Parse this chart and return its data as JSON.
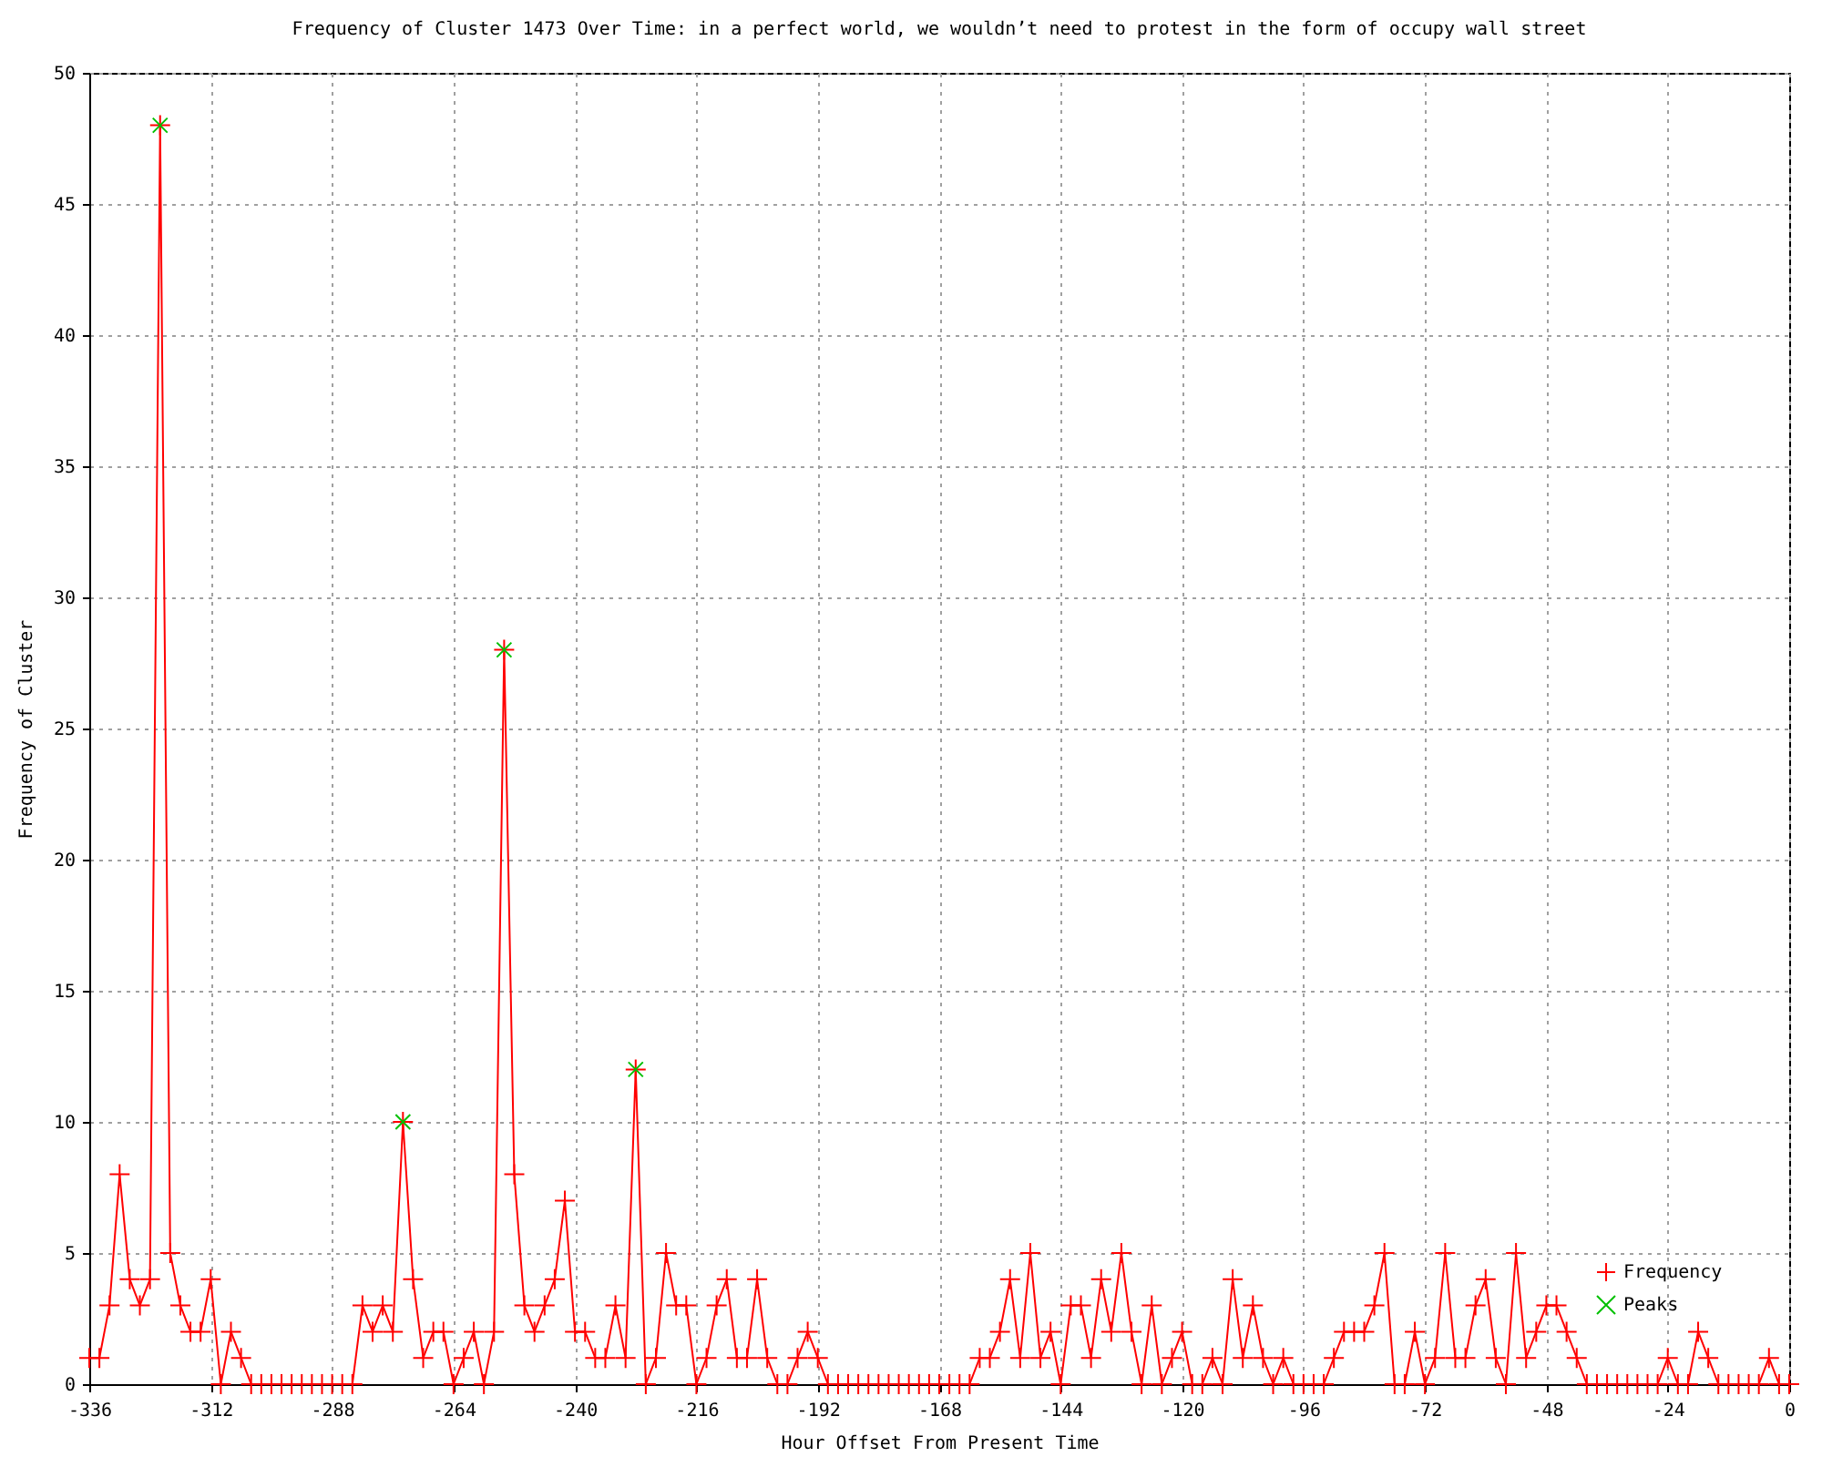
{
  "chart_data": {
    "type": "line",
    "title": "Frequency of Cluster 1473 Over Time: in a perfect world, we wouldn’t need to protest in the form of occupy wall street",
    "xlabel": "Hour Offset From Present Time",
    "ylabel": "Frequency of Cluster",
    "x": [
      -336,
      -334,
      -332,
      -330,
      -328,
      -326,
      -324,
      -322,
      -320,
      -318,
      -316,
      -314,
      -312,
      -310,
      -308,
      -306,
      -304,
      -302,
      -300,
      -298,
      -296,
      -294,
      -292,
      -290,
      -288,
      -286,
      -284,
      -282,
      -280,
      -278,
      -276,
      -274,
      -272,
      -270,
      -268,
      -266,
      -264,
      -262,
      -260,
      -258,
      -256,
      -254,
      -252,
      -250,
      -248,
      -246,
      -244,
      -242,
      -240,
      -238,
      -236,
      -234,
      -232,
      -230,
      -228,
      -226,
      -224,
      -222,
      -220,
      -218,
      -216,
      -214,
      -212,
      -210,
      -208,
      -206,
      -204,
      -202,
      -200,
      -198,
      -196,
      -194,
      -192,
      -190,
      -188,
      -186,
      -184,
      -182,
      -180,
      -178,
      -176,
      -174,
      -172,
      -170,
      -168,
      -166,
      -164,
      -162,
      -160,
      -158,
      -156,
      -154,
      -152,
      -150,
      -148,
      -146,
      -144,
      -142,
      -140,
      -138,
      -136,
      -134,
      -132,
      -130,
      -128,
      -126,
      -124,
      -122,
      -120,
      -118,
      -116,
      -114,
      -112,
      -110,
      -108,
      -106,
      -104,
      -102,
      -100,
      -98,
      -96,
      -94,
      -92,
      -90,
      -88,
      -86,
      -84,
      -82,
      -80,
      -78,
      -76,
      -74,
      -72,
      -70,
      -68,
      -66,
      -64,
      -62,
      -60,
      -58,
      -56,
      -54,
      -52,
      -50,
      -48,
      -46,
      -44,
      -42,
      -40,
      -38,
      -36,
      -34,
      -32,
      -30,
      -28,
      -26,
      -24,
      -22,
      -20,
      -18,
      -16,
      -14,
      -12,
      -10,
      -8,
      -6,
      -4,
      -2,
      0
    ],
    "xlim": [
      -336,
      0
    ],
    "xticks": [
      -336,
      -312,
      -288,
      -264,
      -240,
      -216,
      -192,
      -168,
      -144,
      -120,
      -96,
      -72,
      -48,
      -24,
      0
    ],
    "ylim": [
      0,
      50
    ],
    "yticks": [
      0,
      5,
      10,
      15,
      20,
      25,
      30,
      35,
      40,
      45,
      50
    ],
    "grid": true,
    "legend": "bottom right",
    "series": [
      {
        "name": "Frequency",
        "color": "#ff0000",
        "marker": "cross",
        "line_style": "solid",
        "values": [
          1,
          1,
          3,
          8,
          4,
          3,
          4,
          48,
          5,
          3,
          2,
          2,
          4,
          0,
          2,
          1,
          0,
          0,
          0,
          0,
          0,
          0,
          0,
          0,
          0,
          0,
          0,
          3,
          2,
          3,
          2,
          10,
          4,
          1,
          2,
          2,
          0,
          1,
          2,
          0,
          2,
          28,
          8,
          3,
          2,
          3,
          4,
          7,
          2,
          2,
          1,
          1,
          3,
          1,
          12,
          0,
          1,
          5,
          3,
          3,
          0,
          1,
          3,
          4,
          1,
          1,
          4,
          1,
          0,
          0,
          1,
          2,
          1,
          0,
          0,
          0,
          0,
          0,
          0,
          0,
          0,
          0,
          0,
          0,
          0,
          0,
          0,
          0,
          1,
          1,
          2,
          4,
          1,
          5,
          1,
          2,
          0,
          3,
          3,
          1,
          4,
          2,
          5,
          2,
          0,
          3,
          0,
          1,
          2,
          0,
          0,
          1,
          0,
          4,
          1,
          3,
          1,
          0,
          1,
          0,
          0,
          0,
          0,
          1,
          2,
          2,
          2,
          3,
          5,
          0,
          0,
          2,
          0,
          1,
          5,
          1,
          1,
          3,
          4,
          1,
          0,
          5,
          1,
          2,
          3,
          3,
          2,
          1,
          0,
          0,
          0,
          0,
          0,
          0,
          0,
          0,
          1,
          0,
          0,
          2,
          1,
          0,
          0,
          0,
          0,
          0,
          1,
          0,
          0
        ]
      },
      {
        "name": "Peaks",
        "type": "scatter",
        "color": "#00c000",
        "marker": "cross",
        "x": [
          -322,
          -274,
          -254,
          -228
        ],
        "values": [
          48,
          10,
          28,
          12
        ]
      }
    ]
  }
}
